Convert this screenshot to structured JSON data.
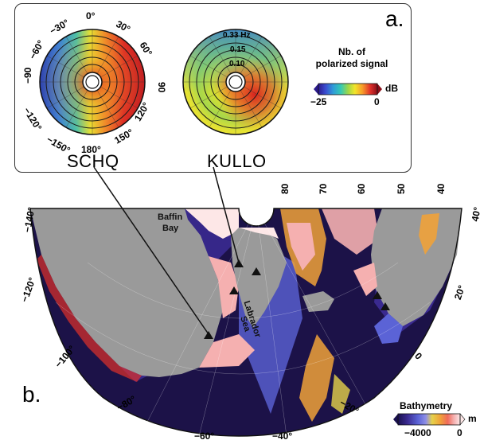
{
  "panel_a": {
    "letter": "a.",
    "stations": [
      {
        "name": "SCHQ"
      },
      {
        "name": "KULLO"
      }
    ],
    "azimuth_labels": [
      "0°",
      "30°",
      "60°",
      "90",
      "120°",
      "150°",
      "180°",
      "−150°",
      "−120°",
      "−90",
      "−60°",
      "−30°"
    ],
    "frequency_labels": [
      "0.33 Hz",
      "0.15",
      "0.10"
    ],
    "colorbar": {
      "title_line1": "Nb. of",
      "title_line2": "polarized signal",
      "min_label": "−25",
      "max_label": "0",
      "unit": "dB",
      "colors": [
        "#2b1a8c",
        "#3b4bd0",
        "#2f9bd8",
        "#35c9b4",
        "#9bd64a",
        "#f2e52a",
        "#f79a2a",
        "#e0302a",
        "#8b0f1a"
      ]
    }
  },
  "panel_b": {
    "letter": "b.",
    "region_labels": [
      "Baffin",
      "Bay",
      "Labrador",
      "Sea"
    ],
    "longitude_labels": [
      "−140°",
      "−120°",
      "−100°",
      "−80°",
      "−60°",
      "−40°",
      "−20°",
      "0",
      "20°",
      "40°",
      "80",
      "70",
      "60",
      "50",
      "40"
    ],
    "colorbar": {
      "title": "Bathymetry",
      "min_label": "−4000",
      "max_label": "0",
      "unit": "m",
      "colors": [
        "#1a1150",
        "#3a2a90",
        "#5b63d6",
        "#8f8fe6",
        "#e6d24a",
        "#f0a23a",
        "#f06a5a",
        "#f5b0b0",
        "#fde7e7"
      ]
    },
    "land_color": "#9a9a9a",
    "ocean_deep_color": "#1c1248"
  }
}
